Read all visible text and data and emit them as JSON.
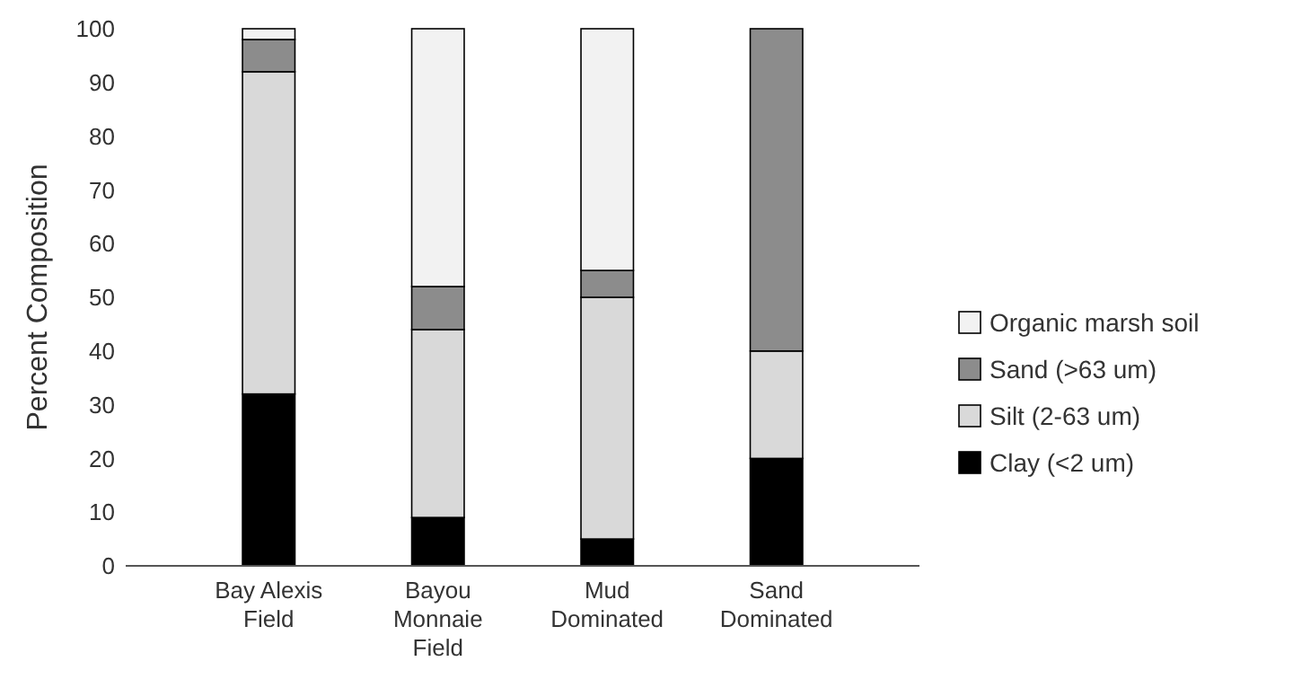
{
  "chart_data": {
    "type": "bar",
    "stacked": true,
    "ylabel": "Percent Composition",
    "categories": [
      "Bay Alexis Field",
      "Bayou Monnaie Field",
      "Mud Dominated",
      "Sand Dominated"
    ],
    "series": [
      {
        "name": "Clay (<2 um)",
        "color": "#000000",
        "values": [
          32,
          9,
          5,
          20
        ]
      },
      {
        "name": "Silt (2-63 um)",
        "color": "#d9d9d9",
        "values": [
          60,
          35,
          45,
          20
        ]
      },
      {
        "name": "Sand (>63 um)",
        "color": "#8c8c8c",
        "values": [
          6,
          8,
          5,
          60
        ]
      },
      {
        "name": "Organic marsh soil",
        "color": "#f2f2f2",
        "values": [
          2,
          48,
          45,
          0
        ]
      }
    ],
    "ylim": [
      0,
      100
    ],
    "yticks": [
      0,
      10,
      20,
      30,
      40,
      50,
      60,
      70,
      80,
      90,
      100
    ],
    "grid": false,
    "legend": "right"
  }
}
